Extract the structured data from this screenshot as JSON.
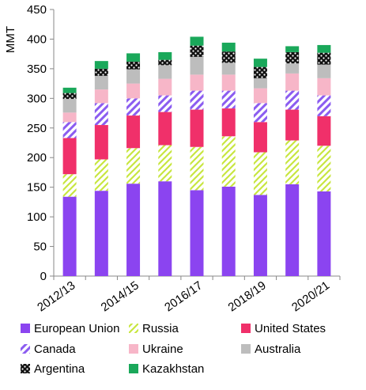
{
  "chart_data": {
    "type": "bar",
    "stacked": true,
    "ylabel": "MMT",
    "ylim": [
      0,
      450
    ],
    "yticks": [
      0,
      50,
      100,
      150,
      200,
      250,
      300,
      350,
      400,
      450
    ],
    "grid": false,
    "legend_position": "bottom",
    "categories": [
      "2012/13",
      "2013/14",
      "2014/15",
      "2015/16",
      "2016/17",
      "2017/18",
      "2018/19",
      "2019/20",
      "2020/21"
    ],
    "category_labels_shown": [
      "2012/13",
      "2014/15",
      "2016/17",
      "2018/19",
      "2020/21"
    ],
    "series": [
      {
        "name": "European Union",
        "color": "#8b44f0",
        "pattern": "solid",
        "values": [
          134,
          144,
          156,
          160,
          145,
          151,
          137,
          155,
          143
        ]
      },
      {
        "name": "Russia",
        "color": "#c8e640",
        "pattern": "diagonal-dash",
        "values": [
          38,
          53,
          60,
          61,
          73,
          85,
          72,
          74,
          77
        ]
      },
      {
        "name": "United States",
        "color": "#f0306a",
        "pattern": "solid",
        "values": [
          61,
          58,
          55,
          56,
          63,
          47,
          51,
          52,
          50
        ]
      },
      {
        "name": "Canada",
        "color": "#8b5cf0",
        "pattern": "diagonal-stripe",
        "values": [
          27,
          37,
          29,
          28,
          32,
          30,
          32,
          32,
          35
        ]
      },
      {
        "name": "Ukraine",
        "color": "#f7b6c8",
        "pattern": "solid",
        "values": [
          16,
          23,
          25,
          28,
          27,
          27,
          25,
          29,
          29
        ]
      },
      {
        "name": "Australia",
        "color": "#bdbdbd",
        "pattern": "solid",
        "values": [
          23,
          23,
          24,
          23,
          30,
          20,
          17,
          17,
          23
        ]
      },
      {
        "name": "Argentina",
        "color": "#111111",
        "pattern": "dots",
        "values": [
          10,
          12,
          13,
          9,
          19,
          19,
          19,
          19,
          20
        ]
      },
      {
        "name": "Kazakhstan",
        "color": "#1aa85a",
        "pattern": "solid",
        "values": [
          9,
          13,
          14,
          13,
          15,
          15,
          14,
          10,
          13
        ]
      }
    ]
  }
}
